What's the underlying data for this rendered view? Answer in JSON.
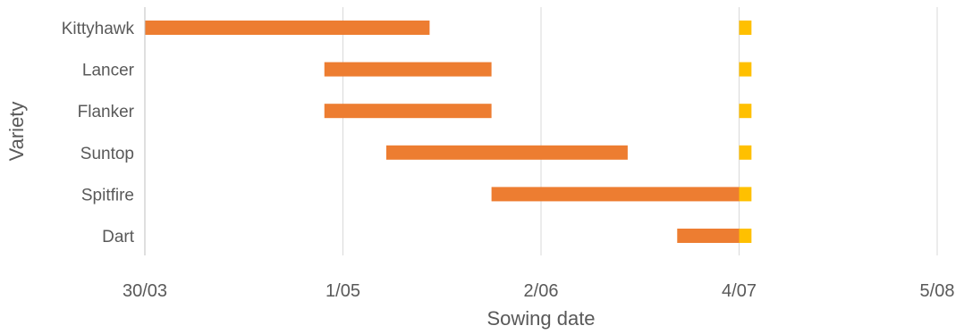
{
  "chart_data": {
    "type": "bar",
    "orientation": "horizontal",
    "title": "",
    "xlabel": "Sowing date",
    "ylabel": "Variety",
    "x_axis": "date (dd/mm)",
    "xlim": [
      "30/03",
      "5/08"
    ],
    "x_ticks": [
      "30/03",
      "1/05",
      "2/06",
      "4/07",
      "5/08"
    ],
    "categories": [
      "Kittyhawk",
      "Lancer",
      "Flanker",
      "Suntop",
      "Spitfire",
      "Dart"
    ],
    "series": [
      {
        "color": "#ED7D31",
        "ranges": [
          {
            "start": "30/03",
            "end": "15/05"
          },
          {
            "start": "28/04",
            "end": "25/05"
          },
          {
            "start": "28/04",
            "end": "25/05"
          },
          {
            "start": "8/05",
            "end": "16/06"
          },
          {
            "start": "25/05",
            "end": "4/07"
          },
          {
            "start": "24/06",
            "end": "4/07"
          }
        ]
      },
      {
        "color": "#FFC000",
        "ranges": [
          {
            "start": "4/07",
            "end": "6/07"
          },
          {
            "start": "4/07",
            "end": "6/07"
          },
          {
            "start": "4/07",
            "end": "6/07"
          },
          {
            "start": "4/07",
            "end": "6/07"
          },
          {
            "start": "4/07",
            "end": "6/07"
          },
          {
            "start": "4/07",
            "end": "6/07"
          }
        ]
      }
    ],
    "grid": "vertical",
    "legend": "none"
  }
}
